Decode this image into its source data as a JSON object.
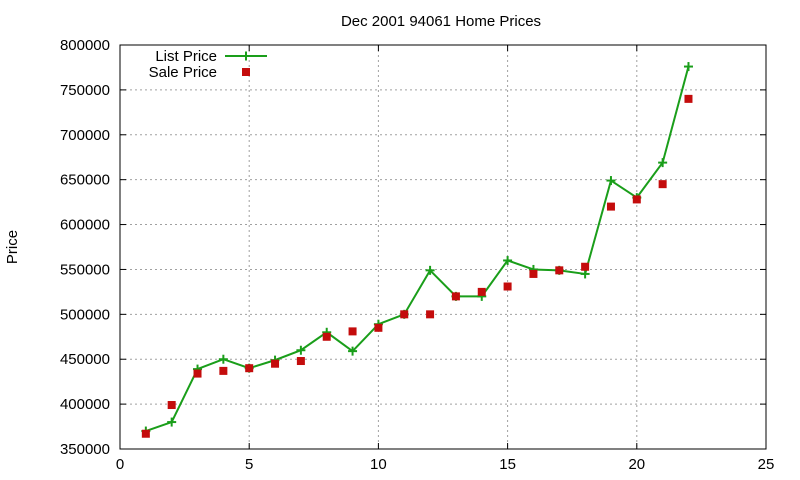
{
  "chart_data": {
    "type": "scatter",
    "title": "Dec 2001 94061 Home Prices",
    "xlabel": "",
    "ylabel": "Price",
    "xlim": [
      0,
      25
    ],
    "ylim": [
      350000,
      800000
    ],
    "xticks": [
      "0",
      "5",
      "10",
      "15",
      "20",
      "25"
    ],
    "yticks": [
      "350000",
      "400000",
      "450000",
      "500000",
      "550000",
      "600000",
      "650000",
      "700000",
      "750000",
      "800000"
    ],
    "grid": true,
    "legend_position": "top-left",
    "series": [
      {
        "name": "List Price",
        "style": "linespoints",
        "marker": "plus",
        "color": "#1a9e1a",
        "x": [
          1,
          2,
          3,
          4,
          5,
          6,
          7,
          8,
          9,
          10,
          11,
          12,
          13,
          14,
          15,
          16,
          17,
          18,
          19,
          20,
          21,
          22
        ],
        "y": [
          370000,
          380000,
          439000,
          450000,
          440000,
          449000,
          460000,
          480000,
          459000,
          489000,
          500000,
          549000,
          520000,
          520000,
          560000,
          550000,
          549000,
          545000,
          649000,
          630000,
          669000,
          776000
        ]
      },
      {
        "name": "Sale Price",
        "style": "points",
        "marker": "square",
        "color": "#c40c0c",
        "x": [
          1,
          2,
          3,
          4,
          5,
          6,
          7,
          8,
          9,
          10,
          11,
          12,
          13,
          14,
          15,
          16,
          17,
          18,
          19,
          20,
          21,
          22
        ],
        "y": [
          367000,
          399000,
          434000,
          437000,
          440000,
          445000,
          448000,
          475000,
          481000,
          485000,
          500000,
          500000,
          520000,
          525000,
          531000,
          545000,
          549000,
          553000,
          620000,
          628000,
          645000,
          740000
        ]
      }
    ]
  }
}
